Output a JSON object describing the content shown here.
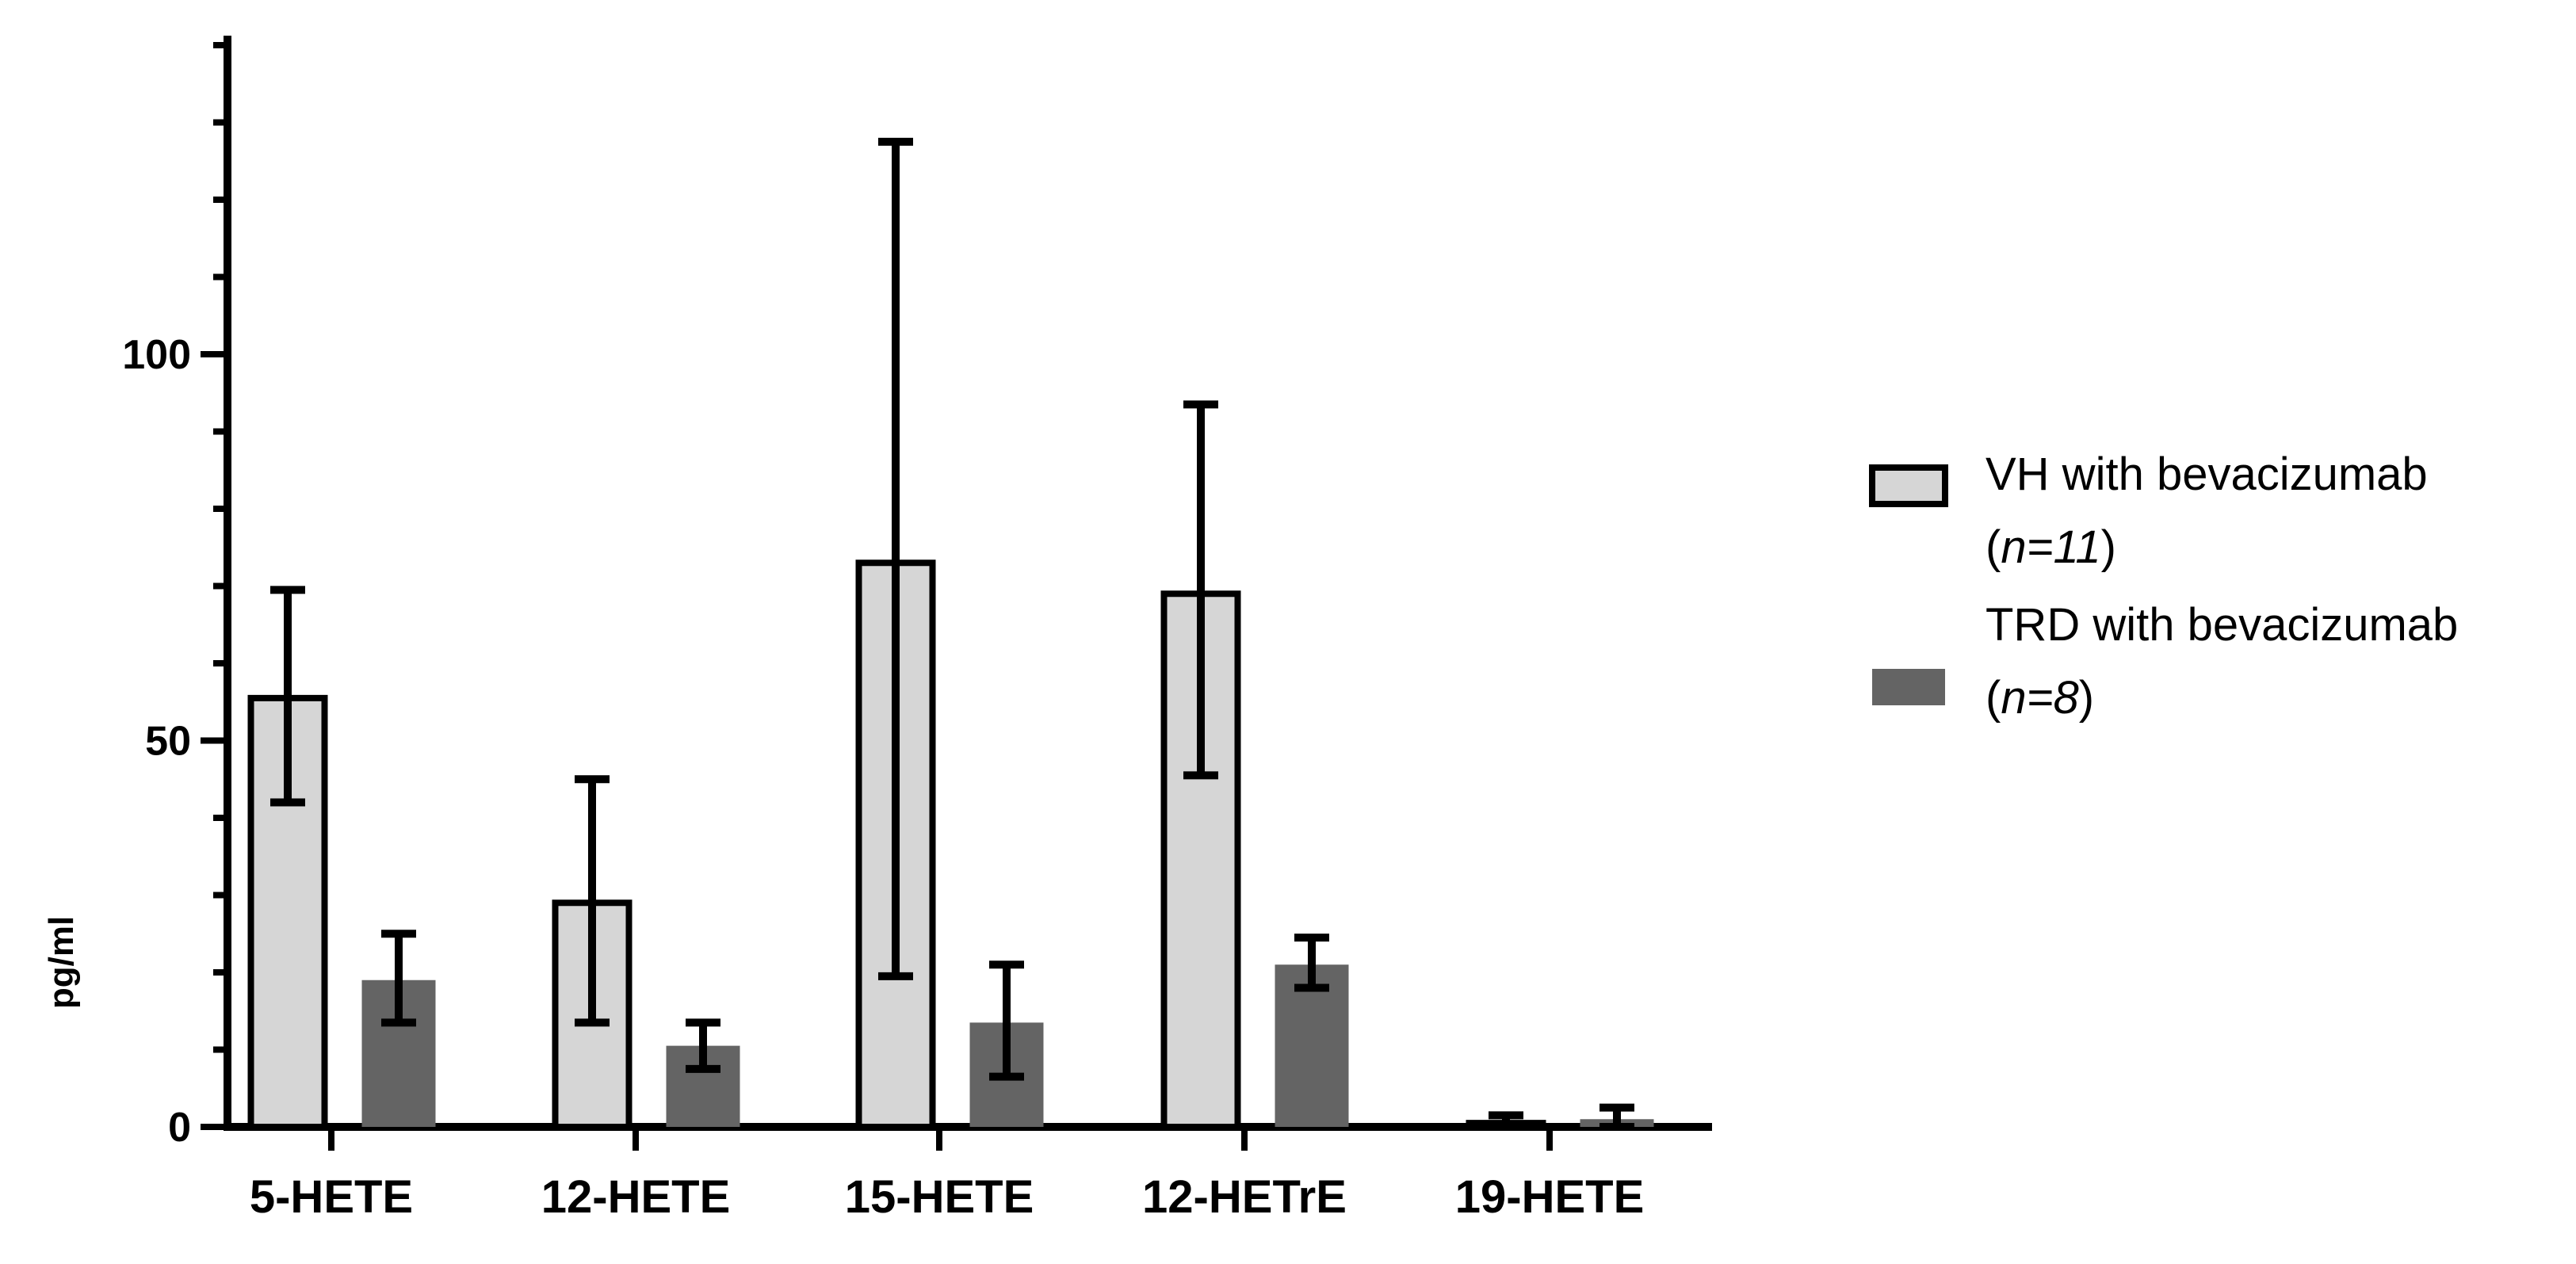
{
  "chart_data": {
    "type": "bar",
    "title": "",
    "xlabel": "",
    "ylabel": "pg/ml",
    "ylim": [
      0,
      140
    ],
    "yticks": [
      0,
      50,
      100
    ],
    "y_minor_step": 10,
    "categories": [
      "5-HETE",
      "12-HETE",
      "15-HETE",
      "12-HETrE",
      "19-HETE"
    ],
    "series": [
      {
        "name": "VH with bevacizumab",
        "n_label": "n=11",
        "color": "#d6d6d6",
        "stroke": "#000000",
        "values": [
          55.5,
          29,
          73,
          69,
          0.5
        ],
        "err_low": [
          42,
          13.5,
          19.5,
          45.5,
          0
        ],
        "err_high": [
          69.5,
          45,
          127.5,
          93.5,
          1.5
        ]
      },
      {
        "name": "TRD with bevacizumab",
        "n_label": "n=8",
        "color": "#646464",
        "stroke": "none",
        "values": [
          19,
          10.5,
          13.5,
          21,
          1
        ],
        "err_low": [
          13.5,
          7.5,
          6.5,
          18,
          0
        ],
        "err_high": [
          25,
          13.5,
          21,
          24.5,
          2.5
        ]
      }
    ],
    "grid": false,
    "legend_position": "right"
  }
}
